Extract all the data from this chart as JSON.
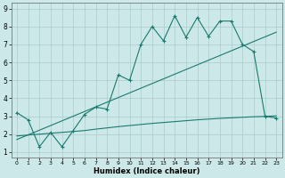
{
  "xlabel": "Humidex (Indice chaleur)",
  "background_color": "#cde8e8",
  "grid_color": "#aacccc",
  "line_color": "#1a7a6e",
  "xlim": [
    -0.5,
    23.5
  ],
  "ylim": [
    0.7,
    9.3
  ],
  "xticks": [
    0,
    1,
    2,
    3,
    4,
    5,
    6,
    7,
    8,
    9,
    10,
    11,
    12,
    13,
    14,
    15,
    16,
    17,
    18,
    19,
    20,
    21,
    22,
    23
  ],
  "yticks": [
    1,
    2,
    3,
    4,
    5,
    6,
    7,
    8,
    9
  ],
  "line1_x": [
    0,
    1,
    2,
    3,
    4,
    5,
    6,
    7,
    8,
    9,
    10,
    11,
    12,
    13,
    14,
    15,
    16,
    17,
    18,
    19,
    20,
    21,
    22,
    23
  ],
  "line1_y": [
    3.2,
    2.8,
    1.3,
    2.1,
    1.3,
    2.2,
    3.1,
    3.5,
    3.4,
    5.3,
    5.0,
    7.0,
    8.0,
    7.2,
    8.6,
    7.4,
    8.5,
    7.45,
    8.3,
    8.3,
    7.0,
    6.6,
    3.0,
    2.9
  ],
  "line2_x": [
    0,
    1,
    2,
    3,
    4,
    5,
    6,
    7,
    8,
    9,
    10,
    11,
    12,
    13,
    14,
    15,
    16,
    17,
    18,
    19,
    20,
    21,
    22,
    23
  ],
  "line2_y": [
    1.9,
    1.95,
    2.0,
    2.05,
    2.1,
    2.15,
    2.2,
    2.28,
    2.35,
    2.42,
    2.48,
    2.54,
    2.6,
    2.65,
    2.7,
    2.75,
    2.8,
    2.84,
    2.88,
    2.91,
    2.94,
    2.97,
    2.99,
    3.02
  ],
  "line3_x": [
    0,
    1,
    2,
    3,
    4,
    5,
    6,
    7,
    8,
    9,
    10,
    11,
    12,
    13,
    14,
    15,
    16,
    17,
    18,
    19,
    20,
    21,
    22,
    23
  ],
  "line3_y": [
    1.7,
    1.96,
    2.22,
    2.48,
    2.74,
    3.0,
    3.26,
    3.52,
    3.78,
    4.04,
    4.3,
    4.56,
    4.82,
    5.08,
    5.34,
    5.6,
    5.86,
    6.12,
    6.38,
    6.64,
    6.9,
    7.16,
    7.42,
    7.68
  ]
}
